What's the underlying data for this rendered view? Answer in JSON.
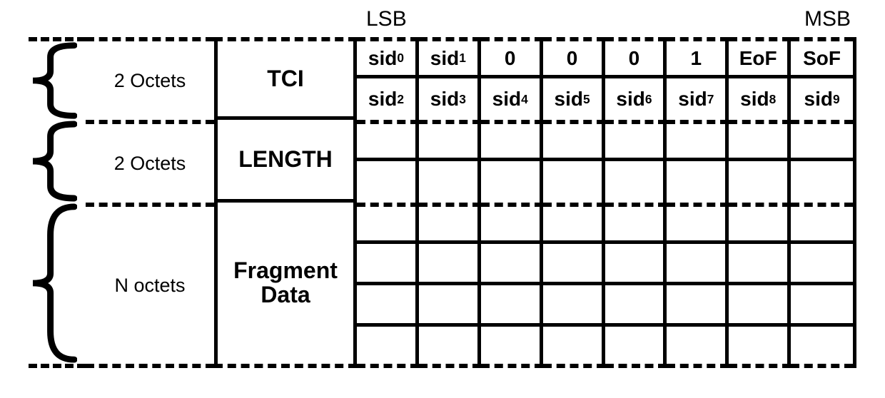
{
  "header": {
    "lsb": "LSB",
    "msb": "MSB"
  },
  "colors": {
    "fg": "#000000",
    "bg": "#ffffff"
  },
  "stroke_width": 5,
  "dash_width": 6,
  "sections": [
    {
      "size_label": "2 Octets",
      "field_label": "TCI",
      "num_rows": 2,
      "cells": [
        [
          "sid",
          "0"
        ],
        [
          "sid",
          "1"
        ],
        [
          "0",
          null
        ],
        [
          "0",
          null
        ],
        [
          "0",
          null
        ],
        [
          "1",
          null
        ],
        [
          "EoF",
          null
        ],
        [
          "SoF",
          null
        ],
        [
          "sid",
          "2"
        ],
        [
          "sid",
          "3"
        ],
        [
          "sid",
          "4"
        ],
        [
          "sid",
          "5"
        ],
        [
          "sid",
          "6"
        ],
        [
          "sid",
          "7"
        ],
        [
          "sid",
          "8"
        ],
        [
          "sid",
          "9"
        ]
      ]
    },
    {
      "size_label": "2 Octets",
      "field_label": "LENGTH",
      "num_rows": 2,
      "cells": [
        [
          "",
          null
        ],
        [
          "",
          null
        ],
        [
          "",
          null
        ],
        [
          "",
          null
        ],
        [
          "",
          null
        ],
        [
          "",
          null
        ],
        [
          "",
          null
        ],
        [
          "",
          null
        ],
        [
          "",
          null
        ],
        [
          "",
          null
        ],
        [
          "",
          null
        ],
        [
          "",
          null
        ],
        [
          "",
          null
        ],
        [
          "",
          null
        ],
        [
          "",
          null
        ],
        [
          "",
          null
        ]
      ]
    },
    {
      "size_label": "N octets",
      "field_label": "Fragment Data",
      "num_rows": 4,
      "cells": [
        [
          "",
          null
        ],
        [
          "",
          null
        ],
        [
          "",
          null
        ],
        [
          "",
          null
        ],
        [
          "",
          null
        ],
        [
          "",
          null
        ],
        [
          "",
          null
        ],
        [
          "",
          null
        ],
        [
          "",
          null
        ],
        [
          "",
          null
        ],
        [
          "",
          null
        ],
        [
          "",
          null
        ],
        [
          "",
          null
        ],
        [
          "",
          null
        ],
        [
          "",
          null
        ],
        [
          "",
          null
        ],
        [
          "",
          null
        ],
        [
          "",
          null
        ],
        [
          "",
          null
        ],
        [
          "",
          null
        ],
        [
          "",
          null
        ],
        [
          "",
          null
        ],
        [
          "",
          null
        ],
        [
          "",
          null
        ],
        [
          "",
          null
        ],
        [
          "",
          null
        ],
        [
          "",
          null
        ],
        [
          "",
          null
        ],
        [
          "",
          null
        ],
        [
          "",
          null
        ],
        [
          "",
          null
        ],
        [
          "",
          null
        ]
      ]
    }
  ]
}
